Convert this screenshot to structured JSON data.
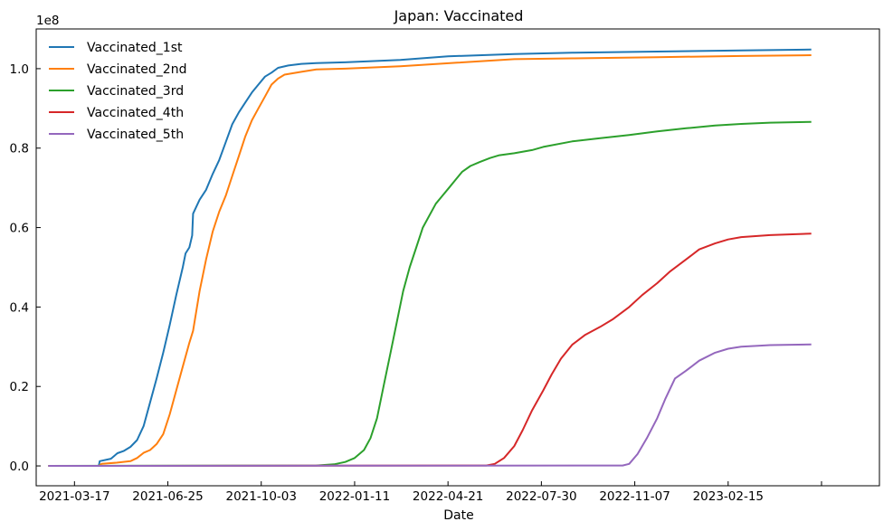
{
  "chart_data": {
    "type": "line",
    "title": "Japan: Vaccinated",
    "xlabel": "Date",
    "ylabel": "",
    "y_multiplier_label": "1e8",
    "y_scale": 100000000,
    "ylim": [
      -0.05,
      1.1
    ],
    "xlim": [
      "2021-02-04",
      "2023-07-27"
    ],
    "x_ticks": [
      "2021-03-17",
      "2021-06-25",
      "2021-10-03",
      "2022-01-11",
      "2022-04-21",
      "2022-07-30",
      "2022-11-07",
      "2023-02-15",
      "2023-05-26"
    ],
    "x_tick_labels": [
      "2021-03-17",
      "2021-06-25",
      "2021-10-03",
      "2022-01-11",
      "2022-04-21",
      "2022-07-30",
      "2022-11-07",
      "2023-02-15",
      ""
    ],
    "y_ticks": [
      0.0,
      0.2,
      0.4,
      0.6,
      0.8,
      1.0
    ],
    "y_tick_labels": [
      "0.0",
      "0.2",
      "0.4",
      "0.6",
      "0.8",
      "1.0"
    ],
    "grid": false,
    "legend_position": "top-left",
    "series": [
      {
        "name": "Vaccinated_1st",
        "color": "#1f77b4",
        "points": [
          [
            "2021-02-17",
            0.0
          ],
          [
            "2021-04-12",
            0.0
          ],
          [
            "2021-04-13",
            0.012
          ],
          [
            "2021-04-25",
            0.018
          ],
          [
            "2021-05-02",
            0.032
          ],
          [
            "2021-05-09",
            0.038
          ],
          [
            "2021-05-16",
            0.048
          ],
          [
            "2021-05-23",
            0.065
          ],
          [
            "2021-05-30",
            0.1
          ],
          [
            "2021-06-06",
            0.16
          ],
          [
            "2021-06-13",
            0.22
          ],
          [
            "2021-06-20",
            0.285
          ],
          [
            "2021-06-27",
            0.355
          ],
          [
            "2021-07-04",
            0.43
          ],
          [
            "2021-07-11",
            0.5
          ],
          [
            "2021-07-14",
            0.535
          ],
          [
            "2021-07-18",
            0.55
          ],
          [
            "2021-07-21",
            0.58
          ],
          [
            "2021-07-22",
            0.635
          ],
          [
            "2021-07-29",
            0.67
          ],
          [
            "2021-08-05",
            0.695
          ],
          [
            "2021-08-12",
            0.735
          ],
          [
            "2021-08-19",
            0.77
          ],
          [
            "2021-08-26",
            0.815
          ],
          [
            "2021-09-02",
            0.86
          ],
          [
            "2021-09-09",
            0.89
          ],
          [
            "2021-09-16",
            0.915
          ],
          [
            "2021-09-23",
            0.94
          ],
          [
            "2021-09-30",
            0.96
          ],
          [
            "2021-10-07",
            0.98
          ],
          [
            "2021-10-14",
            0.99
          ],
          [
            "2021-10-21",
            1.002
          ],
          [
            "2021-11-01",
            1.008
          ],
          [
            "2021-11-15",
            1.012
          ],
          [
            "2021-12-01",
            1.014
          ],
          [
            "2021-12-31",
            1.016
          ],
          [
            "2022-03-01",
            1.022
          ],
          [
            "2022-04-21",
            1.031
          ],
          [
            "2022-07-01",
            1.037
          ],
          [
            "2022-09-01",
            1.04
          ],
          [
            "2022-12-01",
            1.043
          ],
          [
            "2023-03-01",
            1.046
          ],
          [
            "2023-05-15",
            1.048
          ]
        ]
      },
      {
        "name": "Vaccinated_2nd",
        "color": "#ff7f0e",
        "points": [
          [
            "2021-02-17",
            0.0
          ],
          [
            "2021-04-12",
            0.0
          ],
          [
            "2021-04-15",
            0.005
          ],
          [
            "2021-05-01",
            0.008
          ],
          [
            "2021-05-16",
            0.012
          ],
          [
            "2021-05-23",
            0.02
          ],
          [
            "2021-05-30",
            0.033
          ],
          [
            "2021-06-06",
            0.04
          ],
          [
            "2021-06-13",
            0.055
          ],
          [
            "2021-06-20",
            0.08
          ],
          [
            "2021-06-27",
            0.13
          ],
          [
            "2021-07-04",
            0.19
          ],
          [
            "2021-07-11",
            0.25
          ],
          [
            "2021-07-18",
            0.31
          ],
          [
            "2021-07-22",
            0.34
          ],
          [
            "2021-07-29",
            0.44
          ],
          [
            "2021-08-05",
            0.52
          ],
          [
            "2021-08-12",
            0.59
          ],
          [
            "2021-08-19",
            0.64
          ],
          [
            "2021-08-26",
            0.68
          ],
          [
            "2021-09-02",
            0.73
          ],
          [
            "2021-09-09",
            0.78
          ],
          [
            "2021-09-16",
            0.83
          ],
          [
            "2021-09-23",
            0.87
          ],
          [
            "2021-09-30",
            0.9
          ],
          [
            "2021-10-07",
            0.93
          ],
          [
            "2021-10-14",
            0.96
          ],
          [
            "2021-10-21",
            0.975
          ],
          [
            "2021-10-28",
            0.985
          ],
          [
            "2021-11-15",
            0.992
          ],
          [
            "2021-12-01",
            0.998
          ],
          [
            "2022-01-01",
            1.0
          ],
          [
            "2022-03-01",
            1.006
          ],
          [
            "2022-05-01",
            1.015
          ],
          [
            "2022-07-01",
            1.024
          ],
          [
            "2022-09-01",
            1.026
          ],
          [
            "2022-12-01",
            1.029
          ],
          [
            "2023-03-01",
            1.032
          ],
          [
            "2023-05-15",
            1.034
          ]
        ]
      },
      {
        "name": "Vaccinated_3rd",
        "color": "#2ca02c",
        "points": [
          [
            "2021-02-17",
            0.0
          ],
          [
            "2021-12-01",
            0.001
          ],
          [
            "2021-12-20",
            0.004
          ],
          [
            "2022-01-01",
            0.01
          ],
          [
            "2022-01-11",
            0.02
          ],
          [
            "2022-01-21",
            0.04
          ],
          [
            "2022-01-28",
            0.07
          ],
          [
            "2022-02-04",
            0.12
          ],
          [
            "2022-02-11",
            0.2
          ],
          [
            "2022-02-18",
            0.28
          ],
          [
            "2022-02-25",
            0.36
          ],
          [
            "2022-03-04",
            0.44
          ],
          [
            "2022-03-11",
            0.5
          ],
          [
            "2022-03-18",
            0.55
          ],
          [
            "2022-03-25",
            0.6
          ],
          [
            "2022-04-01",
            0.63
          ],
          [
            "2022-04-08",
            0.66
          ],
          [
            "2022-04-15",
            0.68
          ],
          [
            "2022-04-22",
            0.7
          ],
          [
            "2022-04-29",
            0.72
          ],
          [
            "2022-05-06",
            0.74
          ],
          [
            "2022-05-15",
            0.755
          ],
          [
            "2022-05-25",
            0.765
          ],
          [
            "2022-06-05",
            0.775
          ],
          [
            "2022-06-15",
            0.782
          ],
          [
            "2022-07-01",
            0.787
          ],
          [
            "2022-07-20",
            0.795
          ],
          [
            "2022-08-01",
            0.803
          ],
          [
            "2022-09-01",
            0.817
          ],
          [
            "2022-10-01",
            0.825
          ],
          [
            "2022-11-01",
            0.833
          ],
          [
            "2022-12-01",
            0.842
          ],
          [
            "2023-01-01",
            0.85
          ],
          [
            "2023-02-01",
            0.857
          ],
          [
            "2023-03-01",
            0.861
          ],
          [
            "2023-04-01",
            0.864
          ],
          [
            "2023-05-15",
            0.866
          ]
        ]
      },
      {
        "name": "Vaccinated_4th",
        "color": "#d62728",
        "points": [
          [
            "2021-02-17",
            0.0
          ],
          [
            "2022-06-01",
            0.001
          ],
          [
            "2022-06-10",
            0.005
          ],
          [
            "2022-06-20",
            0.02
          ],
          [
            "2022-07-01",
            0.05
          ],
          [
            "2022-07-10",
            0.09
          ],
          [
            "2022-07-20",
            0.14
          ],
          [
            "2022-08-01",
            0.19
          ],
          [
            "2022-08-10",
            0.23
          ],
          [
            "2022-08-20",
            0.27
          ],
          [
            "2022-09-01",
            0.305
          ],
          [
            "2022-09-15",
            0.33
          ],
          [
            "2022-10-01",
            0.35
          ],
          [
            "2022-10-15",
            0.37
          ],
          [
            "2022-11-01",
            0.4
          ],
          [
            "2022-11-15",
            0.43
          ],
          [
            "2022-12-01",
            0.46
          ],
          [
            "2022-12-15",
            0.49
          ],
          [
            "2023-01-01",
            0.52
          ],
          [
            "2023-01-15",
            0.545
          ],
          [
            "2023-02-01",
            0.56
          ],
          [
            "2023-02-15",
            0.57
          ],
          [
            "2023-03-01",
            0.576
          ],
          [
            "2023-04-01",
            0.581
          ],
          [
            "2023-05-15",
            0.585
          ]
        ]
      },
      {
        "name": "Vaccinated_5th",
        "color": "#9467bd",
        "points": [
          [
            "2021-02-17",
            0.0
          ],
          [
            "2022-10-25",
            0.001
          ],
          [
            "2022-11-01",
            0.005
          ],
          [
            "2022-11-10",
            0.03
          ],
          [
            "2022-11-20",
            0.07
          ],
          [
            "2022-12-01",
            0.12
          ],
          [
            "2022-12-10",
            0.17
          ],
          [
            "2022-12-20",
            0.22
          ],
          [
            "2023-01-01",
            0.24
          ],
          [
            "2023-01-15",
            0.265
          ],
          [
            "2023-02-01",
            0.285
          ],
          [
            "2023-02-15",
            0.295
          ],
          [
            "2023-03-01",
            0.3
          ],
          [
            "2023-04-01",
            0.304
          ],
          [
            "2023-05-15",
            0.306
          ]
        ]
      }
    ]
  }
}
